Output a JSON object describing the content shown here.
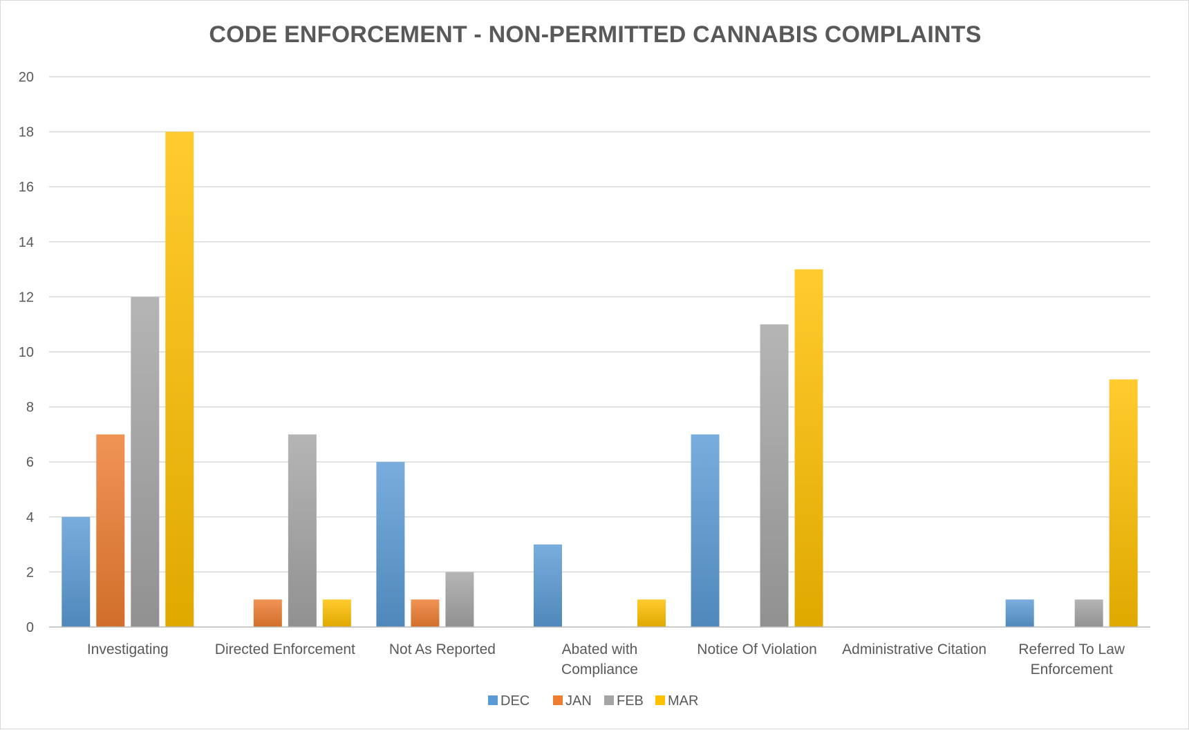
{
  "chart_data": {
    "type": "bar",
    "title": "CODE ENFORCEMENT - NON-PERMITTED CANNABIS COMPLAINTS",
    "xlabel": "",
    "ylabel": "",
    "ylim": [
      0,
      20
    ],
    "yticks": [
      0,
      2,
      4,
      6,
      8,
      10,
      12,
      14,
      16,
      18,
      20
    ],
    "grid": true,
    "legend_position": "bottom",
    "categories": [
      [
        "Investigating"
      ],
      [
        "Directed Enforcement"
      ],
      [
        "Not As Reported"
      ],
      [
        "Abated with",
        "Compliance"
      ],
      [
        "Notice Of Violation"
      ],
      [
        "Administrative Citation"
      ],
      [
        "Referred To Law",
        "Enforcement"
      ]
    ],
    "series": [
      {
        "name": "DEC",
        "color": "#5b9bd5",
        "values": [
          4,
          0,
          6,
          3,
          7,
          0,
          1
        ]
      },
      {
        "name": "JAN",
        "color": "#ed7d31",
        "values": [
          7,
          1,
          1,
          0,
          0,
          0,
          0
        ]
      },
      {
        "name": "FEB",
        "color": "#a5a5a5",
        "values": [
          12,
          7,
          2,
          0,
          11,
          0,
          1
        ]
      },
      {
        "name": "MAR",
        "color": "#ffc000",
        "values": [
          18,
          1,
          0,
          1,
          13,
          0,
          9
        ]
      }
    ]
  }
}
